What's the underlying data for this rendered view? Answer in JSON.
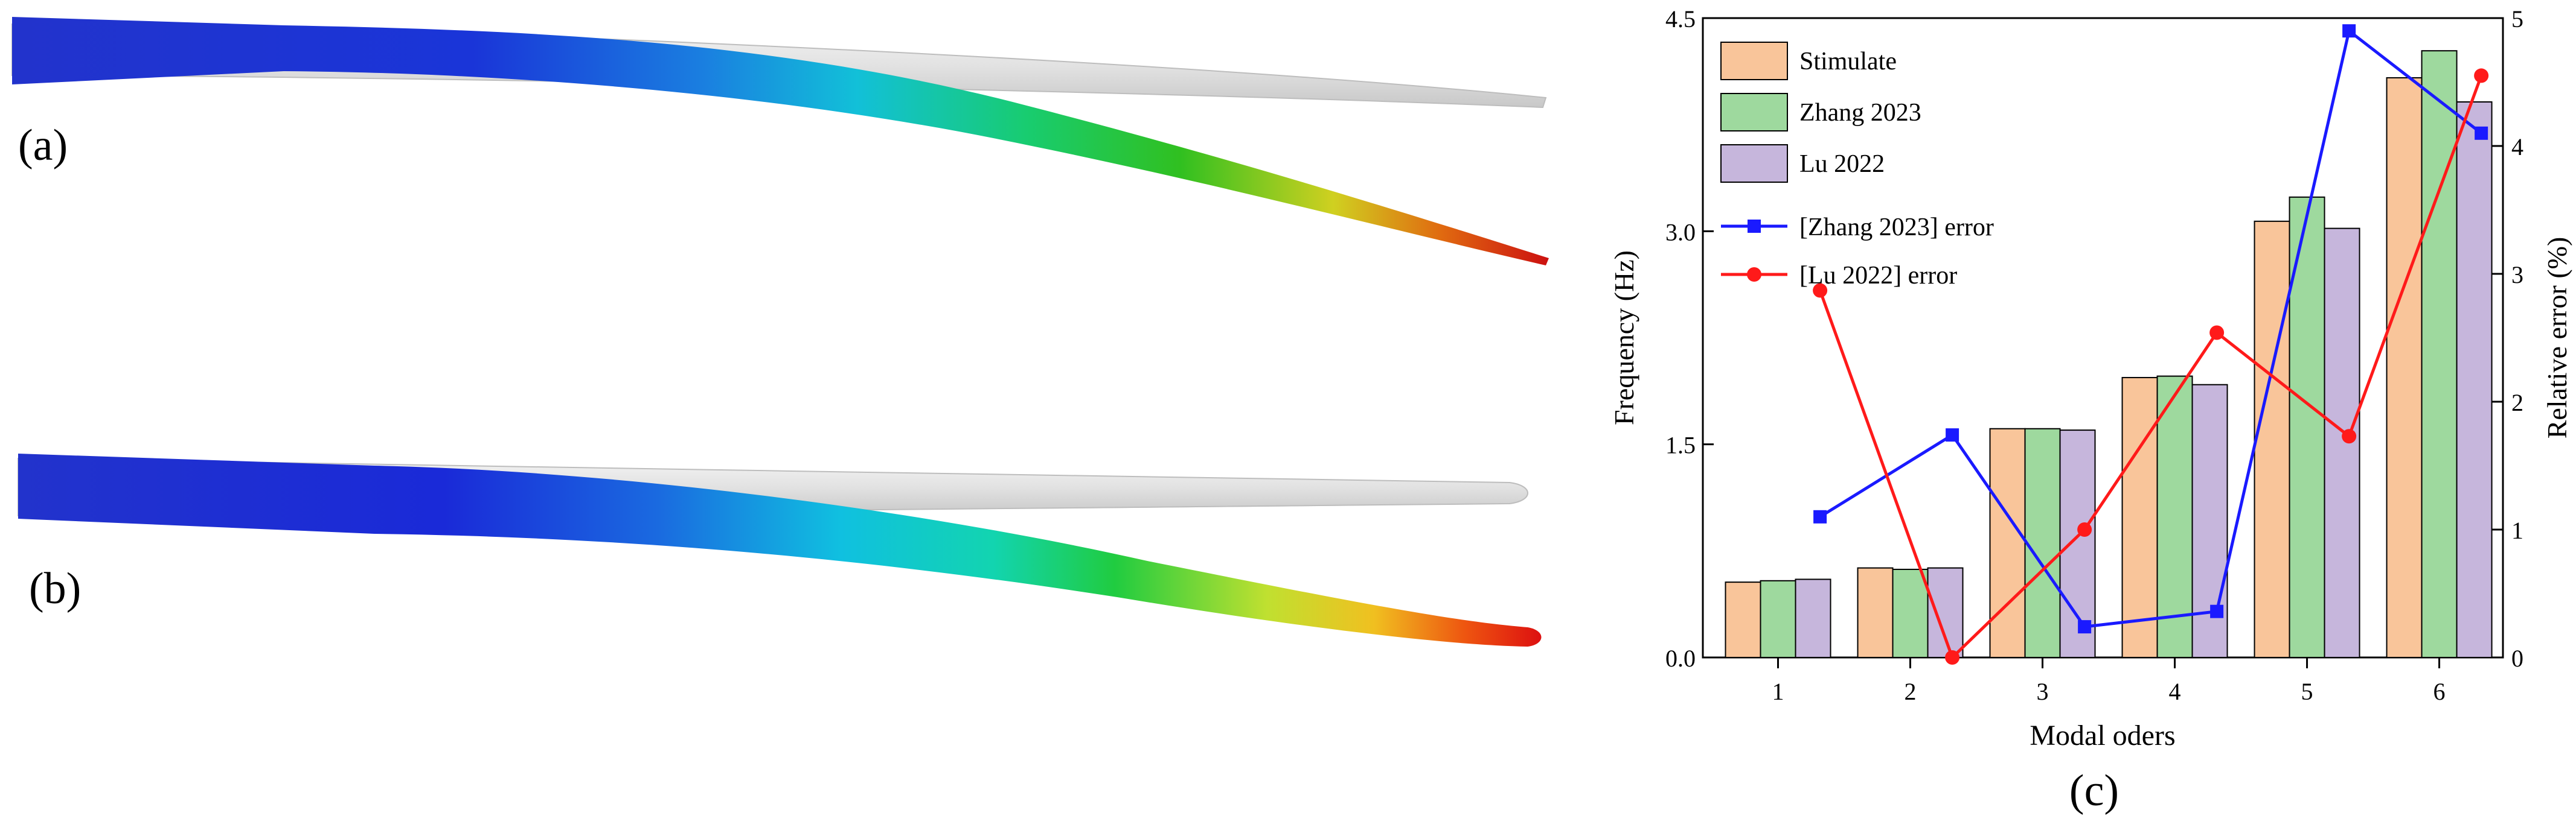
{
  "panels": {
    "a": "(a)",
    "b": "(b)",
    "c": "(c)"
  },
  "chart_data": {
    "type": "bar",
    "xlabel": "Modal oders",
    "ylabel": "Frequency (Hz)",
    "y2label": "Relative error (%)",
    "categories": [
      "1",
      "2",
      "3",
      "4",
      "5",
      "6"
    ],
    "ylim": [
      0,
      4.5
    ],
    "yticks": [
      "0.0",
      "1.5",
      "3.0",
      "4.5"
    ],
    "y2lim": [
      0,
      5
    ],
    "y2ticks": [
      "0",
      "1",
      "2",
      "3",
      "4",
      "5"
    ],
    "series": [
      {
        "name": "Stimulate",
        "type": "bar",
        "color": "#f9c59a",
        "values": [
          0.53,
          0.63,
          1.61,
          1.97,
          3.07,
          4.08
        ]
      },
      {
        "name": "Zhang 2023",
        "type": "bar",
        "color": "#9ed99e",
        "values": [
          0.54,
          0.62,
          1.61,
          1.98,
          3.24,
          4.27
        ]
      },
      {
        "name": "Lu 2022",
        "type": "bar",
        "color": "#c6b6dc",
        "values": [
          0.55,
          0.63,
          1.6,
          1.92,
          3.02,
          3.91
        ]
      },
      {
        "name": "[Zhang 2023] error",
        "type": "line",
        "axis": "right",
        "color": "#1a1aff",
        "marker": "square",
        "values": [
          1.1,
          1.74,
          0.24,
          0.36,
          4.9,
          4.1
        ]
      },
      {
        "name": "[Lu 2022] error",
        "type": "line",
        "axis": "right",
        "color": "#ff1a1a",
        "marker": "circle",
        "values": [
          2.87,
          0.0,
          1.0,
          2.54,
          1.73,
          4.55
        ]
      }
    ],
    "legend": "top-left"
  }
}
